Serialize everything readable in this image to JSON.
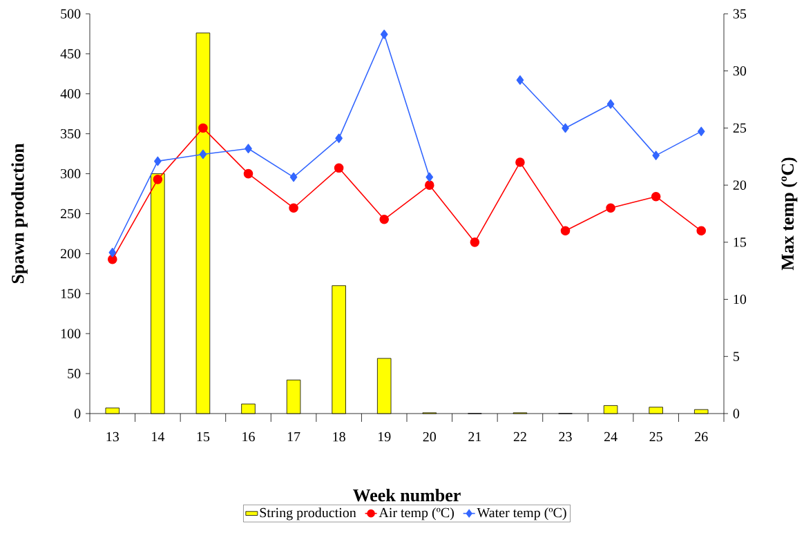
{
  "chart_data": {
    "type": "bar",
    "xlabel": "Week number",
    "ylabel": "Spawn production",
    "y2label": "Max temp (ºC)",
    "categories": [
      "13",
      "14",
      "15",
      "16",
      "17",
      "18",
      "19",
      "20",
      "21",
      "22",
      "23",
      "24",
      "25",
      "26"
    ],
    "series": [
      {
        "name": "String production",
        "color": "#ffff00",
        "values": [
          7,
          300,
          476,
          12,
          42,
          160,
          69,
          1,
          0,
          1,
          0,
          10,
          8,
          5
        ]
      },
      {
        "name": "Air temp (ºC)",
        "type": "line",
        "axis": "y2",
        "color": "#ff0000",
        "marker": "circle",
        "values": [
          13.5,
          20.5,
          25,
          21,
          18,
          21.5,
          17,
          20,
          15,
          22,
          16,
          18,
          19,
          16
        ]
      },
      {
        "name": "Water temp (ºC)",
        "type": "line",
        "axis": "y2",
        "color": "#3366ff",
        "marker": "diamond",
        "values": [
          14.1,
          22.1,
          22.7,
          23.2,
          20.7,
          24.1,
          33.2,
          20.7,
          null,
          29.2,
          25,
          27.1,
          22.6,
          24.7
        ]
      }
    ],
    "ylim": [
      0,
      500
    ],
    "yticks": [
      0,
      50,
      100,
      150,
      200,
      250,
      300,
      350,
      400,
      450,
      500
    ],
    "y2lim": [
      0,
      35
    ],
    "y2ticks": [
      0,
      5,
      10,
      15,
      20,
      25,
      30,
      35
    ],
    "legend": "bottom"
  }
}
